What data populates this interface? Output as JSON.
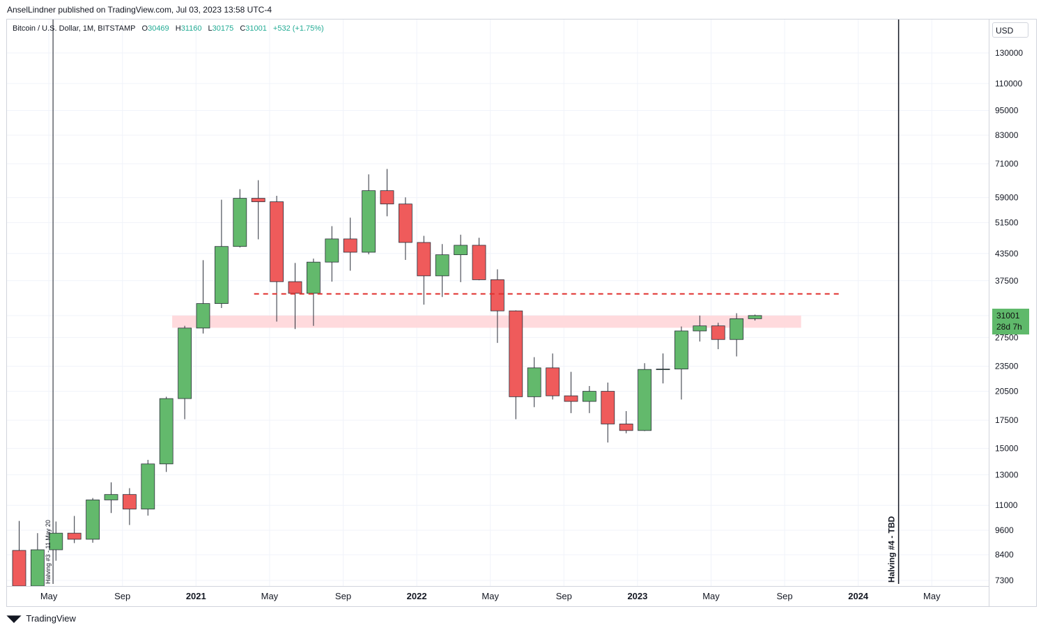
{
  "header": {
    "published": "AnselLindner published on TradingView.com, Jul 03, 2023 13:58 UTC-4"
  },
  "legend": {
    "symbol": "Bitcoin / U.S. Dollar, 1M, BITSTAMP",
    "o_label": "O",
    "o": "30469",
    "h_label": "H",
    "h": "31160",
    "l_label": "L",
    "l": "30175",
    "c_label": "C",
    "c": "31001",
    "change": "+532 (+1.75%)"
  },
  "price_scale": {
    "currency": "USD",
    "last_price": "31001",
    "countdown": "28d 7h"
  },
  "footer": {
    "brand": "TradingView",
    "logo": "tradingview-logo-icon"
  },
  "colors": {
    "up": "#63b96c",
    "down": "#ef5b5b",
    "wick": "#2a2e39",
    "zone": "#ffd6d9",
    "dashed": "#e0302f",
    "grid": "#f0f3fa",
    "accent": "#22ab94"
  },
  "chart_data": {
    "type": "candlestick",
    "symbol": "BTCUSD",
    "interval": "1M",
    "scale": "log",
    "ylim": [
      7000,
      150000
    ],
    "yticks": [
      130000,
      110000,
      95000,
      83000,
      71000,
      59000,
      51500,
      43500,
      37500,
      31001,
      27500,
      23500,
      20500,
      17500,
      15000,
      13000,
      11000,
      9600,
      8400,
      7300
    ],
    "xticks": [
      "May",
      "Sep",
      "2021",
      "May",
      "Sep",
      "2022",
      "May",
      "Sep",
      "2023",
      "May",
      "Sep",
      "2024",
      "May"
    ],
    "bold_xticks": [
      "2021",
      "2022",
      "2023",
      "2024"
    ],
    "candles": [
      {
        "date": "2020-03",
        "open": 8600,
        "high": 10100,
        "low": 5000,
        "close": 6450
      },
      {
        "date": "2020-04",
        "open": 6450,
        "high": 9450,
        "low": 6150,
        "close": 8630
      },
      {
        "date": "2020-05",
        "open": 8630,
        "high": 10070,
        "low": 8130,
        "close": 9450
      },
      {
        "date": "2020-06",
        "open": 9450,
        "high": 10380,
        "low": 8950,
        "close": 9140
      },
      {
        "date": "2020-07",
        "open": 9140,
        "high": 11450,
        "low": 8970,
        "close": 11330
      },
      {
        "date": "2020-08",
        "open": 11330,
        "high": 12470,
        "low": 10550,
        "close": 11670
      },
      {
        "date": "2020-09",
        "open": 11670,
        "high": 12080,
        "low": 9880,
        "close": 10780
      },
      {
        "date": "2020-10",
        "open": 10780,
        "high": 14100,
        "low": 10400,
        "close": 13790
      },
      {
        "date": "2020-11",
        "open": 13790,
        "high": 19900,
        "low": 13200,
        "close": 19700
      },
      {
        "date": "2020-12",
        "open": 19700,
        "high": 29300,
        "low": 17600,
        "close": 28950
      },
      {
        "date": "2021-01",
        "open": 28950,
        "high": 41950,
        "low": 28100,
        "close": 33100
      },
      {
        "date": "2021-02",
        "open": 33100,
        "high": 58350,
        "low": 32300,
        "close": 45200
      },
      {
        "date": "2021-03",
        "open": 45200,
        "high": 61800,
        "low": 44950,
        "close": 58800
      },
      {
        "date": "2021-04",
        "open": 58800,
        "high": 64900,
        "low": 47000,
        "close": 57700
      },
      {
        "date": "2021-05",
        "open": 57700,
        "high": 59600,
        "low": 30000,
        "close": 37300
      },
      {
        "date": "2021-06",
        "open": 37300,
        "high": 41300,
        "low": 28800,
        "close": 35000
      },
      {
        "date": "2021-07",
        "open": 35000,
        "high": 42300,
        "low": 29300,
        "close": 41500
      },
      {
        "date": "2021-08",
        "open": 41500,
        "high": 50500,
        "low": 37300,
        "close": 47100
      },
      {
        "date": "2021-09",
        "open": 47100,
        "high": 52900,
        "low": 39600,
        "close": 43800
      },
      {
        "date": "2021-10",
        "open": 43800,
        "high": 67000,
        "low": 43300,
        "close": 61300
      },
      {
        "date": "2021-11",
        "open": 61300,
        "high": 69000,
        "low": 53300,
        "close": 57000
      },
      {
        "date": "2021-12",
        "open": 57000,
        "high": 59100,
        "low": 42000,
        "close": 46200
      },
      {
        "date": "2022-01",
        "open": 46200,
        "high": 47900,
        "low": 32900,
        "close": 38500
      },
      {
        "date": "2022-02",
        "open": 38500,
        "high": 45800,
        "low": 34300,
        "close": 43200
      },
      {
        "date": "2022-03",
        "open": 43200,
        "high": 48200,
        "low": 37200,
        "close": 45500
      },
      {
        "date": "2022-04",
        "open": 45500,
        "high": 47400,
        "low": 37600,
        "close": 37700
      },
      {
        "date": "2022-05",
        "open": 37700,
        "high": 39900,
        "low": 26700,
        "close": 31800
      },
      {
        "date": "2022-06",
        "open": 31800,
        "high": 31900,
        "low": 17600,
        "close": 19900
      },
      {
        "date": "2022-07",
        "open": 19900,
        "high": 24700,
        "low": 18800,
        "close": 23300
      },
      {
        "date": "2022-08",
        "open": 23300,
        "high": 25200,
        "low": 19600,
        "close": 20000
      },
      {
        "date": "2022-09",
        "open": 20000,
        "high": 22800,
        "low": 18200,
        "close": 19400
      },
      {
        "date": "2022-10",
        "open": 19400,
        "high": 21100,
        "low": 18200,
        "close": 20500
      },
      {
        "date": "2022-11",
        "open": 20500,
        "high": 21500,
        "low": 15500,
        "close": 17150
      },
      {
        "date": "2022-12",
        "open": 17150,
        "high": 18400,
        "low": 16300,
        "close": 16550
      },
      {
        "date": "2023-01",
        "open": 16550,
        "high": 23900,
        "low": 16500,
        "close": 23100
      },
      {
        "date": "2023-02",
        "open": 23100,
        "high": 25200,
        "low": 21400,
        "close": 23150
      },
      {
        "date": "2023-03",
        "open": 23150,
        "high": 29200,
        "low": 19600,
        "close": 28500
      },
      {
        "date": "2023-04",
        "open": 28500,
        "high": 31000,
        "low": 26900,
        "close": 29300
      },
      {
        "date": "2023-05",
        "open": 29300,
        "high": 29800,
        "low": 25800,
        "close": 27200
      },
      {
        "date": "2023-06",
        "open": 27200,
        "high": 31400,
        "low": 24800,
        "close": 30470
      },
      {
        "date": "2023-07",
        "open": 30469,
        "high": 31160,
        "low": 30175,
        "close": 31001
      }
    ],
    "annotations": {
      "halving3_label": "Halving #3 - 11 May 20",
      "halving3_date": "2020-05-11",
      "halving4_label": "Halving #4 - TBD",
      "halving4_date": "2024-03-10",
      "resistance_zone": {
        "from": "2020-12",
        "to": "2023-10",
        "low": 29000,
        "high": 31000
      },
      "dashed_level": {
        "from": "2021-04",
        "to": "2023-12",
        "price": 34900
      }
    }
  }
}
